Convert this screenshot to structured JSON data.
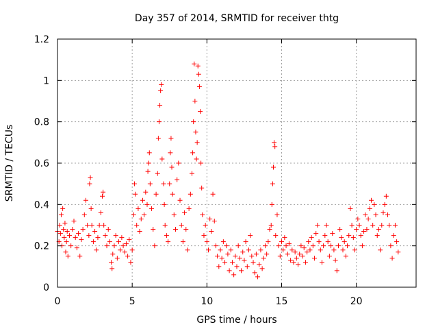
{
  "chart_data": {
    "type": "scatter",
    "title": "Day 357 of 2014, SRMTID for receiver thtg",
    "xlabel": "GPS time / hours",
    "ylabel": "SRMTID / TECUs",
    "xlim": [
      0,
      24
    ],
    "ylim": [
      0,
      1.2
    ],
    "x_ticks": [
      0,
      5,
      10,
      15,
      20
    ],
    "x_tick_labels": [
      "0",
      "5",
      "10",
      "15",
      "20"
    ],
    "y_ticks": [
      0,
      0.2,
      0.4,
      0.6,
      0.8,
      1.0,
      1.2
    ],
    "y_tick_labels": [
      "0",
      "0.2",
      "0.4",
      "0.6",
      "0.8",
      "1",
      "1.2"
    ],
    "grid": true,
    "marker": "+",
    "color": "#ff0000",
    "series": [
      {
        "name": "SRMTID",
        "points": [
          [
            0.0,
            0.27
          ],
          [
            0.1,
            0.22
          ],
          [
            0.15,
            0.3
          ],
          [
            0.2,
            0.26
          ],
          [
            0.25,
            0.35
          ],
          [
            0.3,
            0.2
          ],
          [
            0.35,
            0.38
          ],
          [
            0.4,
            0.28
          ],
          [
            0.45,
            0.24
          ],
          [
            0.5,
            0.31
          ],
          [
            0.55,
            0.17
          ],
          [
            0.6,
            0.22
          ],
          [
            0.65,
            0.27
          ],
          [
            0.7,
            0.15
          ],
          [
            0.8,
            0.25
          ],
          [
            0.9,
            0.2
          ],
          [
            1.0,
            0.28
          ],
          [
            1.1,
            0.32
          ],
          [
            1.2,
            0.24
          ],
          [
            1.3,
            0.19
          ],
          [
            1.4,
            0.26
          ],
          [
            1.5,
            0.15
          ],
          [
            1.6,
            0.23
          ],
          [
            1.7,
            0.28
          ],
          [
            1.8,
            0.35
          ],
          [
            1.9,
            0.42
          ],
          [
            2.0,
            0.3
          ],
          [
            2.1,
            0.25
          ],
          [
            2.15,
            0.5
          ],
          [
            2.2,
            0.53
          ],
          [
            2.25,
            0.38
          ],
          [
            2.3,
            0.3
          ],
          [
            2.4,
            0.22
          ],
          [
            2.5,
            0.27
          ],
          [
            2.6,
            0.18
          ],
          [
            2.7,
            0.24
          ],
          [
            2.8,
            0.3
          ],
          [
            2.9,
            0.36
          ],
          [
            3.0,
            0.44
          ],
          [
            3.05,
            0.46
          ],
          [
            3.1,
            0.3
          ],
          [
            3.2,
            0.25
          ],
          [
            3.3,
            0.2
          ],
          [
            3.4,
            0.28
          ],
          [
            3.5,
            0.22
          ],
          [
            3.6,
            0.12
          ],
          [
            3.65,
            0.09
          ],
          [
            3.7,
            0.16
          ],
          [
            3.8,
            0.2
          ],
          [
            3.9,
            0.25
          ],
          [
            4.0,
            0.14
          ],
          [
            4.1,
            0.22
          ],
          [
            4.2,
            0.18
          ],
          [
            4.3,
            0.24
          ],
          [
            4.4,
            0.2
          ],
          [
            4.5,
            0.17
          ],
          [
            4.6,
            0.21
          ],
          [
            4.7,
            0.15
          ],
          [
            4.8,
            0.23
          ],
          [
            4.9,
            0.12
          ],
          [
            5.0,
            0.18
          ],
          [
            5.1,
            0.35
          ],
          [
            5.15,
            0.5
          ],
          [
            5.2,
            0.45
          ],
          [
            5.3,
            0.3
          ],
          [
            5.4,
            0.38
          ],
          [
            5.5,
            0.27
          ],
          [
            5.6,
            0.33
          ],
          [
            5.7,
            0.42
          ],
          [
            5.8,
            0.35
          ],
          [
            5.9,
            0.46
          ],
          [
            6.0,
            0.4
          ],
          [
            6.05,
            0.56
          ],
          [
            6.1,
            0.6
          ],
          [
            6.15,
            0.65
          ],
          [
            6.2,
            0.5
          ],
          [
            6.3,
            0.38
          ],
          [
            6.4,
            0.28
          ],
          [
            6.5,
            0.2
          ],
          [
            6.6,
            0.45
          ],
          [
            6.7,
            0.55
          ],
          [
            6.75,
            0.72
          ],
          [
            6.8,
            0.8
          ],
          [
            6.85,
            0.88
          ],
          [
            6.9,
            0.95
          ],
          [
            6.95,
            0.98
          ],
          [
            7.0,
            0.62
          ],
          [
            7.1,
            0.5
          ],
          [
            7.15,
            0.4
          ],
          [
            7.2,
            0.3
          ],
          [
            7.3,
            0.25
          ],
          [
            7.4,
            0.22
          ],
          [
            7.5,
            0.5
          ],
          [
            7.55,
            0.65
          ],
          [
            7.6,
            0.72
          ],
          [
            7.65,
            0.58
          ],
          [
            7.7,
            0.45
          ],
          [
            7.8,
            0.35
          ],
          [
            7.9,
            0.28
          ],
          [
            8.0,
            0.52
          ],
          [
            8.1,
            0.6
          ],
          [
            8.2,
            0.42
          ],
          [
            8.3,
            0.3
          ],
          [
            8.4,
            0.22
          ],
          [
            8.5,
            0.36
          ],
          [
            8.6,
            0.28
          ],
          [
            8.7,
            0.18
          ],
          [
            8.8,
            0.38
          ],
          [
            8.9,
            0.45
          ],
          [
            9.0,
            0.55
          ],
          [
            9.05,
            0.65
          ],
          [
            9.1,
            0.8
          ],
          [
            9.15,
            1.08
          ],
          [
            9.2,
            0.9
          ],
          [
            9.25,
            0.75
          ],
          [
            9.3,
            0.62
          ],
          [
            9.35,
            0.7
          ],
          [
            9.4,
            1.07
          ],
          [
            9.45,
            1.03
          ],
          [
            9.5,
            0.97
          ],
          [
            9.55,
            0.85
          ],
          [
            9.6,
            0.6
          ],
          [
            9.65,
            0.48
          ],
          [
            9.7,
            0.35
          ],
          [
            9.8,
            0.25
          ],
          [
            9.9,
            0.3
          ],
          [
            10.0,
            0.22
          ],
          [
            10.1,
            0.18
          ],
          [
            10.2,
            0.33
          ],
          [
            10.3,
            0.27
          ],
          [
            10.4,
            0.45
          ],
          [
            10.5,
            0.32
          ],
          [
            10.6,
            0.2
          ],
          [
            10.7,
            0.15
          ],
          [
            10.8,
            0.1
          ],
          [
            10.9,
            0.18
          ],
          [
            11.0,
            0.14
          ],
          [
            11.1,
            0.22
          ],
          [
            11.2,
            0.12
          ],
          [
            11.3,
            0.2
          ],
          [
            11.4,
            0.16
          ],
          [
            11.5,
            0.08
          ],
          [
            11.6,
            0.18
          ],
          [
            11.7,
            0.12
          ],
          [
            11.8,
            0.06
          ],
          [
            11.9,
            0.15
          ],
          [
            12.0,
            0.1
          ],
          [
            12.1,
            0.2
          ],
          [
            12.2,
            0.14
          ],
          [
            12.3,
            0.08
          ],
          [
            12.4,
            0.17
          ],
          [
            12.5,
            0.13
          ],
          [
            12.6,
            0.22
          ],
          [
            12.7,
            0.1
          ],
          [
            12.8,
            0.18
          ],
          [
            12.9,
            0.25
          ],
          [
            13.0,
            0.15
          ],
          [
            13.1,
            0.12
          ],
          [
            13.2,
            0.07
          ],
          [
            13.3,
            0.16
          ],
          [
            13.4,
            0.05
          ],
          [
            13.5,
            0.11
          ],
          [
            13.6,
            0.18
          ],
          [
            13.7,
            0.09
          ],
          [
            13.8,
            0.14
          ],
          [
            13.9,
            0.2
          ],
          [
            14.0,
            0.16
          ],
          [
            14.1,
            0.22
          ],
          [
            14.2,
            0.28
          ],
          [
            14.3,
            0.3
          ],
          [
            14.35,
            0.4
          ],
          [
            14.4,
            0.5
          ],
          [
            14.45,
            0.58
          ],
          [
            14.5,
            0.7
          ],
          [
            14.55,
            0.68
          ],
          [
            14.6,
            0.25
          ],
          [
            14.7,
            0.35
          ],
          [
            14.8,
            0.2
          ],
          [
            14.9,
            0.15
          ],
          [
            15.0,
            0.22
          ],
          [
            15.1,
            0.18
          ],
          [
            15.2,
            0.24
          ],
          [
            15.3,
            0.2
          ],
          [
            15.4,
            0.16
          ],
          [
            15.5,
            0.21
          ],
          [
            15.6,
            0.13
          ],
          [
            15.7,
            0.18
          ],
          [
            15.8,
            0.12
          ],
          [
            15.9,
            0.17
          ],
          [
            16.0,
            0.14
          ],
          [
            16.1,
            0.11
          ],
          [
            16.2,
            0.16
          ],
          [
            16.3,
            0.2
          ],
          [
            16.4,
            0.15
          ],
          [
            16.5,
            0.19
          ],
          [
            16.6,
            0.12
          ],
          [
            16.7,
            0.17
          ],
          [
            16.8,
            0.22
          ],
          [
            16.9,
            0.18
          ],
          [
            17.0,
            0.24
          ],
          [
            17.1,
            0.2
          ],
          [
            17.2,
            0.14
          ],
          [
            17.3,
            0.26
          ],
          [
            17.4,
            0.3
          ],
          [
            17.5,
            0.22
          ],
          [
            17.6,
            0.18
          ],
          [
            17.7,
            0.12
          ],
          [
            17.8,
            0.2
          ],
          [
            17.9,
            0.25
          ],
          [
            18.0,
            0.3
          ],
          [
            18.1,
            0.22
          ],
          [
            18.2,
            0.15
          ],
          [
            18.3,
            0.2
          ],
          [
            18.4,
            0.26
          ],
          [
            18.5,
            0.18
          ],
          [
            18.6,
            0.13
          ],
          [
            18.7,
            0.08
          ],
          [
            18.8,
            0.2
          ],
          [
            18.9,
            0.28
          ],
          [
            19.0,
            0.24
          ],
          [
            19.1,
            0.18
          ],
          [
            19.2,
            0.22
          ],
          [
            19.3,
            0.15
          ],
          [
            19.4,
            0.2
          ],
          [
            19.5,
            0.25
          ],
          [
            19.6,
            0.38
          ],
          [
            19.7,
            0.3
          ],
          [
            19.8,
            0.24
          ],
          [
            19.9,
            0.18
          ],
          [
            20.0,
            0.28
          ],
          [
            20.1,
            0.33
          ],
          [
            20.2,
            0.3
          ],
          [
            20.3,
            0.25
          ],
          [
            20.4,
            0.2
          ],
          [
            20.5,
            0.27
          ],
          [
            20.6,
            0.35
          ],
          [
            20.7,
            0.28
          ],
          [
            20.8,
            0.33
          ],
          [
            20.9,
            0.38
          ],
          [
            21.0,
            0.42
          ],
          [
            21.1,
            0.3
          ],
          [
            21.2,
            0.4
          ],
          [
            21.3,
            0.35
          ],
          [
            21.4,
            0.25
          ],
          [
            21.5,
            0.28
          ],
          [
            21.6,
            0.18
          ],
          [
            21.7,
            0.3
          ],
          [
            21.8,
            0.36
          ],
          [
            21.9,
            0.4
          ],
          [
            22.0,
            0.44
          ],
          [
            22.1,
            0.35
          ],
          [
            22.2,
            0.3
          ],
          [
            22.3,
            0.2
          ],
          [
            22.4,
            0.14
          ],
          [
            22.5,
            0.25
          ],
          [
            22.6,
            0.3
          ],
          [
            22.7,
            0.22
          ],
          [
            22.8,
            0.17
          ]
        ]
      }
    ]
  }
}
